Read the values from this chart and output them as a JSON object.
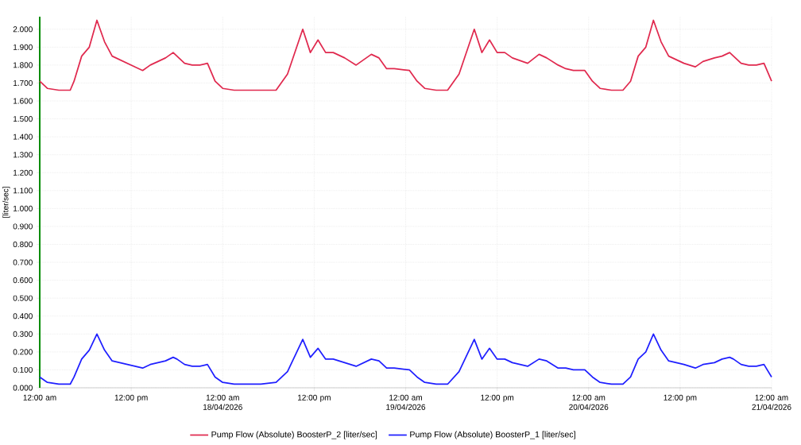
{
  "chart_data": {
    "type": "line",
    "ylabel": "[liter/sec]",
    "x": [
      "2026-04-17T00:00",
      "2026-04-17T01:00",
      "2026-04-17T02:30",
      "2026-04-17T04:00",
      "2026-04-17T04:30",
      "2026-04-17T05:30",
      "2026-04-17T06:30",
      "2026-04-17T07:30",
      "2026-04-17T08:30",
      "2026-04-17T09:30",
      "2026-04-17T10:30",
      "2026-04-17T11:30",
      "2026-04-17T12:30",
      "2026-04-17T13:30",
      "2026-04-17T14:30",
      "2026-04-17T15:30",
      "2026-04-17T16:30",
      "2026-04-17T17:30",
      "2026-04-17T18:00",
      "2026-04-17T19:00",
      "2026-04-17T20:00",
      "2026-04-17T21:00",
      "2026-04-17T22:00",
      "2026-04-17T23:00",
      "2026-04-18T00:00",
      "2026-04-18T01:30",
      "2026-04-18T03:00",
      "2026-04-18T05:00",
      "2026-04-18T07:00",
      "2026-04-18T08:30",
      "2026-04-18T10:30",
      "2026-04-18T11:30",
      "2026-04-18T12:30",
      "2026-04-18T13:30",
      "2026-04-18T14:30",
      "2026-04-18T16:00",
      "2026-04-18T17:30",
      "2026-04-18T19:30",
      "2026-04-18T20:30",
      "2026-04-18T21:30",
      "2026-04-18T22:30",
      "2026-04-19T00:30",
      "2026-04-19T01:30",
      "2026-04-19T02:30",
      "2026-04-19T04:00",
      "2026-04-19T05:30",
      "2026-04-19T07:00",
      "2026-04-19T09:00",
      "2026-04-19T10:00",
      "2026-04-19T11:00",
      "2026-04-19T12:00",
      "2026-04-19T13:00",
      "2026-04-19T14:00",
      "2026-04-19T16:00",
      "2026-04-19T17:30",
      "2026-04-19T18:30",
      "2026-04-19T20:00",
      "2026-04-19T21:00",
      "2026-04-19T22:00",
      "2026-04-19T23:30",
      "2026-04-20T00:30",
      "2026-04-20T01:30",
      "2026-04-20T03:00",
      "2026-04-20T04:30",
      "2026-04-20T05:30",
      "2026-04-20T06:30",
      "2026-04-20T07:30",
      "2026-04-20T08:30",
      "2026-04-20T09:30",
      "2026-04-20T10:30",
      "2026-04-20T11:30",
      "2026-04-20T12:30",
      "2026-04-20T14:00",
      "2026-04-20T15:00",
      "2026-04-20T16:30",
      "2026-04-20T17:30",
      "2026-04-20T18:30",
      "2026-04-20T19:00",
      "2026-04-20T20:00",
      "2026-04-20T21:00",
      "2026-04-20T22:00",
      "2026-04-20T23:00",
      "2026-04-21T00:00"
    ],
    "series": [
      {
        "name": "Pump Flow (Absolute) BoosterP_2 [liter/sec]",
        "color": "#e0294e",
        "values": [
          1.71,
          1.67,
          1.66,
          1.66,
          1.71,
          1.85,
          1.9,
          2.05,
          1.93,
          1.85,
          1.83,
          1.81,
          1.79,
          1.77,
          1.8,
          1.82,
          1.84,
          1.87,
          1.85,
          1.81,
          1.8,
          1.8,
          1.81,
          1.71,
          1.67,
          1.66,
          1.66,
          1.66,
          1.66,
          1.75,
          2.0,
          1.87,
          1.94,
          1.87,
          1.87,
          1.84,
          1.8,
          1.86,
          1.84,
          1.78,
          1.78,
          1.77,
          1.71,
          1.67,
          1.66,
          1.66,
          1.75,
          2.0,
          1.87,
          1.94,
          1.87,
          1.87,
          1.84,
          1.81,
          1.86,
          1.84,
          1.8,
          1.78,
          1.77,
          1.77,
          1.71,
          1.67,
          1.66,
          1.66,
          1.71,
          1.85,
          1.9,
          2.05,
          1.93,
          1.85,
          1.83,
          1.81,
          1.79,
          1.82,
          1.84,
          1.85,
          1.87,
          1.85,
          1.81,
          1.8,
          1.8,
          1.81,
          1.71
        ]
      },
      {
        "name": "Pump Flow (Absolute) BoosterP_1 [liter/sec]",
        "color": "#1f1fff",
        "values": [
          0.06,
          0.03,
          0.02,
          0.02,
          0.06,
          0.16,
          0.21,
          0.3,
          0.21,
          0.15,
          0.14,
          0.13,
          0.12,
          0.11,
          0.13,
          0.14,
          0.15,
          0.17,
          0.16,
          0.13,
          0.12,
          0.12,
          0.13,
          0.06,
          0.03,
          0.02,
          0.02,
          0.02,
          0.03,
          0.09,
          0.27,
          0.17,
          0.22,
          0.16,
          0.16,
          0.14,
          0.12,
          0.16,
          0.15,
          0.11,
          0.11,
          0.1,
          0.06,
          0.03,
          0.02,
          0.02,
          0.09,
          0.27,
          0.16,
          0.22,
          0.16,
          0.16,
          0.14,
          0.12,
          0.16,
          0.15,
          0.11,
          0.11,
          0.1,
          0.1,
          0.06,
          0.03,
          0.02,
          0.02,
          0.06,
          0.16,
          0.2,
          0.3,
          0.21,
          0.15,
          0.14,
          0.13,
          0.11,
          0.13,
          0.14,
          0.16,
          0.17,
          0.16,
          0.13,
          0.12,
          0.12,
          0.13,
          0.06
        ]
      }
    ],
    "xlim": [
      "2026-04-17T00:00",
      "2026-04-21T00:00"
    ],
    "xticks": [
      {
        "value": "2026-04-17T00:00",
        "label": "12:00 am"
      },
      {
        "value": "2026-04-17T12:00",
        "label": "12:00 pm"
      },
      {
        "value": "2026-04-18T00:00",
        "label": "12:00 am 18/04/2026"
      },
      {
        "value": "2026-04-18T12:00",
        "label": "12:00 pm"
      },
      {
        "value": "2026-04-19T00:00",
        "label": "12:00 am 19/04/2026"
      },
      {
        "value": "2026-04-19T12:00",
        "label": "12:00 pm"
      },
      {
        "value": "2026-04-20T00:00",
        "label": "12:00 am 20/04/2026"
      },
      {
        "value": "2026-04-20T12:00",
        "label": "12:00 pm"
      },
      {
        "value": "2026-04-21T00:00",
        "label": "12:00 am 21/04/2026"
      }
    ],
    "ylim": [
      0,
      2.07
    ],
    "yticks": [
      {
        "value": 0,
        "label": "0.000"
      },
      {
        "value": 0.1,
        "label": "0.100"
      },
      {
        "value": 0.2,
        "label": "0.200"
      },
      {
        "value": 0.3,
        "label": "0.300"
      },
      {
        "value": 0.4,
        "label": "0.400"
      },
      {
        "value": 0.5,
        "label": "0.500"
      },
      {
        "value": 0.6,
        "label": "0.600"
      },
      {
        "value": 0.7,
        "label": "0.700"
      },
      {
        "value": 0.8,
        "label": "0.800"
      },
      {
        "value": 0.9,
        "label": "0.900"
      },
      {
        "value": 1.0,
        "label": "1.000"
      },
      {
        "value": 1.1,
        "label": "1.100"
      },
      {
        "value": 1.2,
        "label": "1.200"
      },
      {
        "value": 1.3,
        "label": "1.300"
      },
      {
        "value": 1.4,
        "label": "1.400"
      },
      {
        "value": 1.5,
        "label": "1.500"
      },
      {
        "value": 1.6,
        "label": "1.600"
      },
      {
        "value": 1.7,
        "label": "1.700"
      },
      {
        "value": 1.8,
        "label": "1.800"
      },
      {
        "value": 1.9,
        "label": "1.900"
      },
      {
        "value": 2.0,
        "label": "2.000"
      }
    ],
    "grid": true,
    "legend": "bottom"
  }
}
